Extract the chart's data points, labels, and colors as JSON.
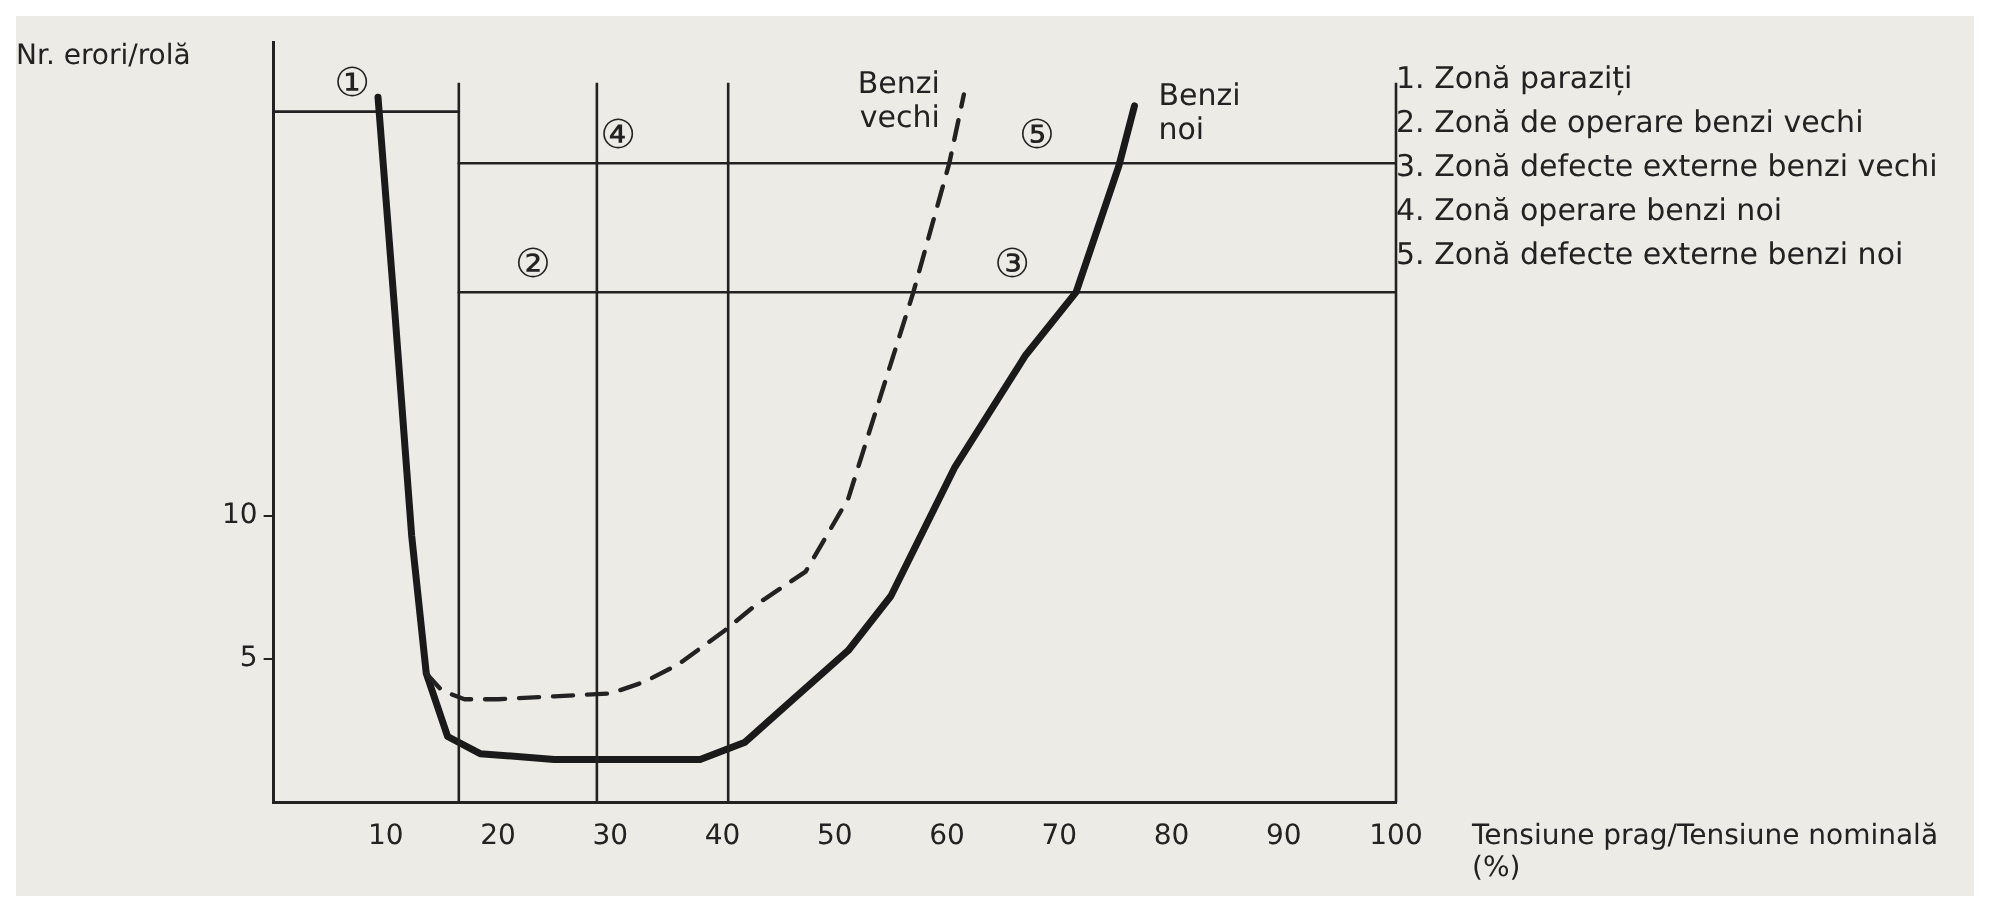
{
  "chart_data": {
    "type": "line",
    "ylabel": "Nr. erori/rolă",
    "xlabel": "Tensiune prag/Tensiune nominală (%)",
    "xlim": [
      0,
      100
    ],
    "xticks": [
      10,
      20,
      30,
      40,
      50,
      60,
      70,
      80,
      90,
      100
    ],
    "ylim": [
      0,
      26.5
    ],
    "yticks": [
      5,
      10
    ],
    "marker": "none",
    "series": [
      {
        "name": "Benzi vechi",
        "color": "#222222",
        "line_style": "dashed",
        "x": [
          13.6,
          15,
          17,
          20,
          25,
          30,
          33,
          36,
          40.2,
          43,
          47.4,
          51.2,
          54.5,
          57,
          60.2,
          61.5
        ],
        "values": [
          4.5,
          3.9,
          3.6,
          3.6,
          3.7,
          3.8,
          4.2,
          4.8,
          6.0,
          6.9,
          8.05,
          10.6,
          14.7,
          17.8,
          22.3,
          24.7
        ]
      },
      {
        "name": "Benzi noi",
        "color": "#1a1a1a",
        "line_style": "solid",
        "x": [
          9.3,
          10.8,
          12.3,
          13.6,
          15.5,
          18.4,
          25,
          30,
          38,
          42,
          46,
          51.2,
          55,
          60.7,
          67,
          71.5,
          75.3,
          76.7
        ],
        "values": [
          24.6,
          17.1,
          9.3,
          4.5,
          2.3,
          1.7,
          1.5,
          1.5,
          1.5,
          2.1,
          3.5,
          5.3,
          7.2,
          11.7,
          15.6,
          17.8,
          22.2,
          24.3
        ]
      },
      {
        "color": "#222222",
        "line_style": "solid",
        "x": [
          0,
          16.5
        ],
        "values": [
          24.1,
          24.1
        ]
      },
      {
        "color": "#222222",
        "line_style": "solid",
        "x": [
          16.5,
          40.5,
          100
        ],
        "values": [
          22.3,
          22.3,
          22.3
        ]
      },
      {
        "color": "#222222",
        "line_style": "solid",
        "x": [
          16.5,
          28.8,
          100
        ],
        "values": [
          17.8,
          17.8,
          17.8
        ]
      }
    ],
    "ref_lines": [
      {
        "axis": "x",
        "value": 16.5,
        "color": "#222222"
      },
      {
        "axis": "x",
        "value": 28.8,
        "color": "#222222"
      },
      {
        "axis": "x",
        "value": 40.5,
        "color": "#222222"
      },
      {
        "axis": "x",
        "value": 100,
        "color": "#222222"
      }
    ],
    "annotations": [
      {
        "text": "①",
        "x": 7,
        "y": 24.1
      },
      {
        "text": "④",
        "x": 30.7,
        "y": 22.3
      },
      {
        "text": "②",
        "x": 23.1,
        "y": 17.8
      },
      {
        "text": "⑤",
        "x": 68,
        "y": 22.3
      },
      {
        "text": "③",
        "x": 65.8,
        "y": 17.8
      },
      "1. Zonă paraziți",
      "2. Zonă de operare benzi vechi",
      "3. Zonă defecte externe benzi vechi",
      "4. Zonă operare benzi noi",
      "5. Zonă defecte externe benzi noi"
    ]
  }
}
